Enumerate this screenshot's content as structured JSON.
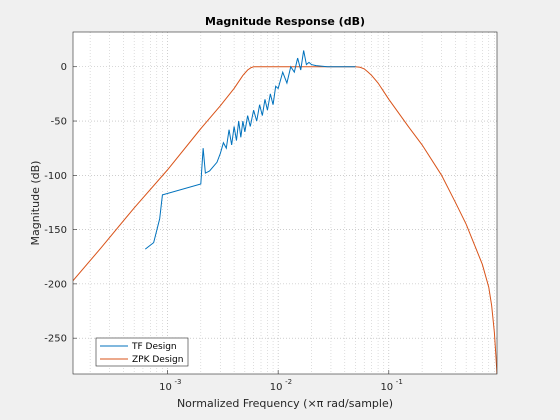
{
  "chart_data": {
    "type": "line",
    "title": "Magnitude Response (dB)",
    "xlabel": "Normalized Frequency (×π rad/sample)",
    "ylabel": "Magnitude (dB)",
    "x_scale": "log",
    "xlim": [
      0.00014,
      0.95
    ],
    "ylim": [
      -283,
      32
    ],
    "x_ticks": [
      0.001,
      0.01,
      0.1
    ],
    "x_tick_labels": [
      "10",
      "10",
      "10"
    ],
    "x_tick_exponents": [
      "-3",
      "-2",
      "-1"
    ],
    "y_ticks": [
      0,
      -50,
      -100,
      -150,
      -200,
      -250
    ],
    "y_tick_labels": [
      "0",
      "-50",
      "-100",
      "-150",
      "-200",
      "-250"
    ],
    "grid": "dotted",
    "legend_position": "bottom-left",
    "colors": {
      "tf": "#0072bd",
      "zpk": "#d95319"
    },
    "series": [
      {
        "name": "ZPK Design",
        "color": "#d95319",
        "x": [
          0.00014,
          0.00025,
          0.0005,
          0.001,
          0.002,
          0.003,
          0.004,
          0.0048,
          0.0053,
          0.0057,
          0.006,
          0.007,
          0.01,
          0.02,
          0.03,
          0.04,
          0.05,
          0.055,
          0.06,
          0.065,
          0.07,
          0.08,
          0.1,
          0.15,
          0.2,
          0.3,
          0.4,
          0.5,
          0.6,
          0.7,
          0.8,
          0.85,
          0.88,
          0.9,
          0.92,
          0.94,
          0.95
        ],
        "y": [
          -197,
          -167,
          -130,
          -95,
          -57,
          -36,
          -20,
          -8,
          -3,
          -0.8,
          0,
          0,
          0,
          0,
          0,
          0,
          0,
          -0.5,
          -2,
          -5,
          -8,
          -15,
          -30,
          -55,
          -72,
          -100,
          -125,
          -145,
          -165,
          -182,
          -203,
          -220,
          -235,
          -245,
          -260,
          -275,
          -283
        ]
      },
      {
        "name": "TF Design",
        "color": "#0072bd",
        "x": [
          0.00063,
          0.00075,
          0.00085,
          0.0009,
          0.002,
          0.0021,
          0.0022,
          0.0024,
          0.0028,
          0.003,
          0.0032,
          0.0034,
          0.0036,
          0.0038,
          0.004,
          0.0042,
          0.0044,
          0.0046,
          0.0048,
          0.005,
          0.0053,
          0.0056,
          0.006,
          0.0064,
          0.0068,
          0.0072,
          0.0076,
          0.008,
          0.0085,
          0.009,
          0.0095,
          0.01,
          0.011,
          0.012,
          0.013,
          0.014,
          0.015,
          0.016,
          0.017,
          0.018,
          0.019,
          0.02,
          0.022,
          0.025,
          0.028,
          0.03,
          0.035,
          0.04,
          0.05
        ],
        "y": [
          -168,
          -162,
          -140,
          -118,
          -108,
          -75,
          -98,
          -96,
          -88,
          -80,
          -70,
          -75,
          -58,
          -72,
          -55,
          -68,
          -50,
          -65,
          -50,
          -60,
          -45,
          -55,
          -40,
          -50,
          -35,
          -45,
          -30,
          -40,
          -25,
          -35,
          -18,
          -20,
          -5,
          -15,
          0,
          -5,
          8,
          -3,
          15,
          2,
          4,
          2,
          1,
          0.5,
          0,
          0,
          0,
          0,
          0
        ]
      }
    ]
  }
}
